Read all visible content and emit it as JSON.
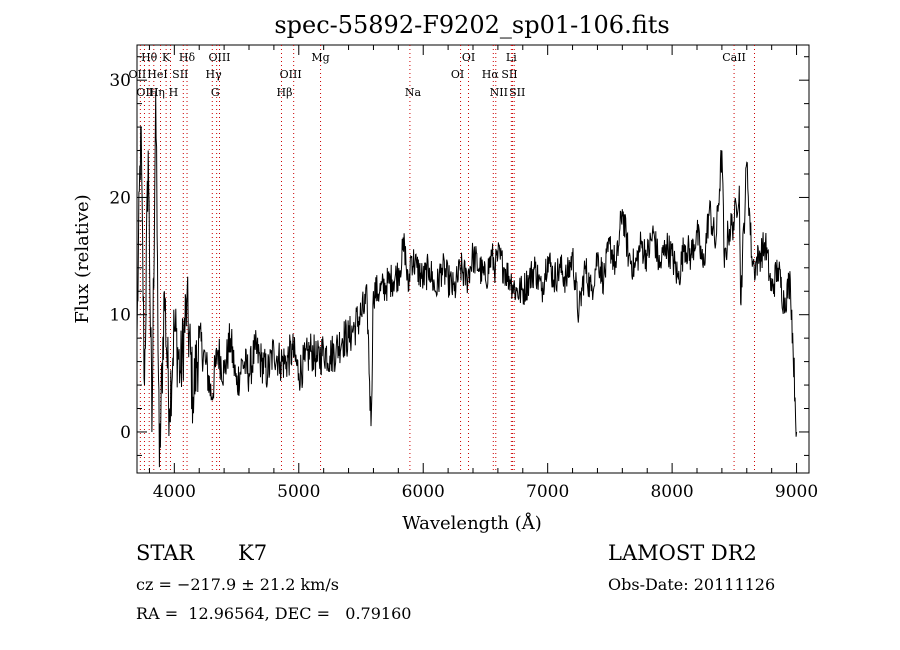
{
  "chart_data": {
    "type": "line",
    "title": "spec-55892-F9202_sp01-106.fits",
    "xlabel": "Wavelength (Å)",
    "ylabel": "Flux (relative)",
    "xlim": [
      3700,
      9100
    ],
    "ylim": [
      -3.5,
      33
    ],
    "xticks": [
      4000,
      5000,
      6000,
      7000,
      8000,
      9000
    ],
    "yticks": [
      0,
      10,
      20,
      30
    ],
    "series": [
      {
        "name": "flux",
        "x": [
          3700,
          3730,
          3760,
          3790,
          3820,
          3850,
          3880,
          3920,
          3960,
          4000,
          4050,
          4100,
          4150,
          4200,
          4250,
          4300,
          4350,
          4400,
          4450,
          4500,
          4550,
          4600,
          4650,
          4700,
          4750,
          4800,
          4850,
          4900,
          4950,
          5000,
          5050,
          5100,
          5150,
          5200,
          5250,
          5300,
          5350,
          5400,
          5450,
          5500,
          5550,
          5580,
          5600,
          5650,
          5700,
          5750,
          5800,
          5850,
          5880,
          5900,
          5950,
          6000,
          6050,
          6100,
          6150,
          6200,
          6250,
          6300,
          6350,
          6400,
          6450,
          6500,
          6550,
          6580,
          6600,
          6650,
          6700,
          6750,
          6800,
          6850,
          6900,
          6950,
          7000,
          7050,
          7100,
          7150,
          7200,
          7250,
          7300,
          7350,
          7400,
          7450,
          7500,
          7550,
          7600,
          7650,
          7700,
          7750,
          7800,
          7850,
          7900,
          7950,
          8000,
          8050,
          8100,
          8150,
          8200,
          8250,
          8300,
          8350,
          8400,
          8420,
          8450,
          8500,
          8540,
          8550,
          8600,
          8640,
          8660,
          8700,
          8750,
          8800,
          8850,
          8900,
          8950,
          9000
        ],
        "y": [
          8,
          26,
          4,
          24,
          0,
          29,
          -3,
          12,
          2,
          9,
          5,
          11,
          3,
          8,
          6,
          3,
          7,
          5,
          8,
          4,
          6,
          5,
          7,
          6,
          5,
          7,
          6,
          6,
          7,
          5,
          6,
          7,
          6,
          7,
          6.5,
          7,
          8,
          8,
          9,
          10,
          11,
          0.5,
          12,
          12,
          12.5,
          13,
          13.5,
          16,
          12,
          15,
          14,
          13,
          14,
          12,
          14,
          13,
          12,
          14,
          13,
          15,
          14,
          13,
          15,
          14,
          15,
          14,
          13,
          12,
          12,
          13,
          14,
          12,
          15,
          13,
          14,
          13,
          15,
          10,
          14,
          12,
          15,
          13,
          16,
          14,
          19,
          15,
          14,
          16,
          15,
          17,
          14,
          16,
          15,
          13,
          16,
          15,
          17,
          14,
          19,
          16,
          24,
          14,
          17,
          18,
          21,
          11,
          23,
          15,
          14,
          15,
          16,
          12,
          14,
          11,
          13,
          0
        ]
      }
    ],
    "lines": [
      {
        "name": "Hθ",
        "x": 3798
      },
      {
        "name": "K",
        "x": 3934
      },
      {
        "name": "Hδ",
        "x": 4102
      },
      {
        "name": "OIII",
        "x": 4363
      },
      {
        "name": "Mg",
        "x": 5175
      },
      {
        "name": "OI",
        "x": 6364
      },
      {
        "name": "Li",
        "x": 6708
      },
      {
        "name": "CaII",
        "x": 8498
      },
      {
        "name": "OII",
        "x": 3727
      },
      {
        "name": "HeI",
        "x": 3889
      },
      {
        "name": "SII",
        "x": 4072
      },
      {
        "name": "Hγ",
        "x": 4340
      },
      {
        "name": "OIII",
        "x": 4959
      },
      {
        "name": "OI",
        "x": 6300
      },
      {
        "name": "Hα",
        "x": 6563
      },
      {
        "name": "SII",
        "x": 6717
      },
      {
        "name": "OIII",
        "x": 3760
      },
      {
        "name": "Hη",
        "x": 3835
      },
      {
        "name": "H",
        "x": 3969
      },
      {
        "name": "G",
        "x": 4305
      },
      {
        "name": "Hβ",
        "x": 4861
      },
      {
        "name": "Na",
        "x": 5893
      },
      {
        "name": "NII",
        "x": 6583
      },
      {
        "name": "SII",
        "x": 6731
      },
      {
        "name": "CaII",
        "x": 8662
      }
    ]
  },
  "info": {
    "class": "STAR",
    "subclass": "K7",
    "survey": "LAMOST DR2",
    "cz": "cz = −217.9 ± 21.2 km/s",
    "obsdate": "Obs-Date: 20111126",
    "coords": "RA =  12.96564, DEC =   0.79160"
  }
}
